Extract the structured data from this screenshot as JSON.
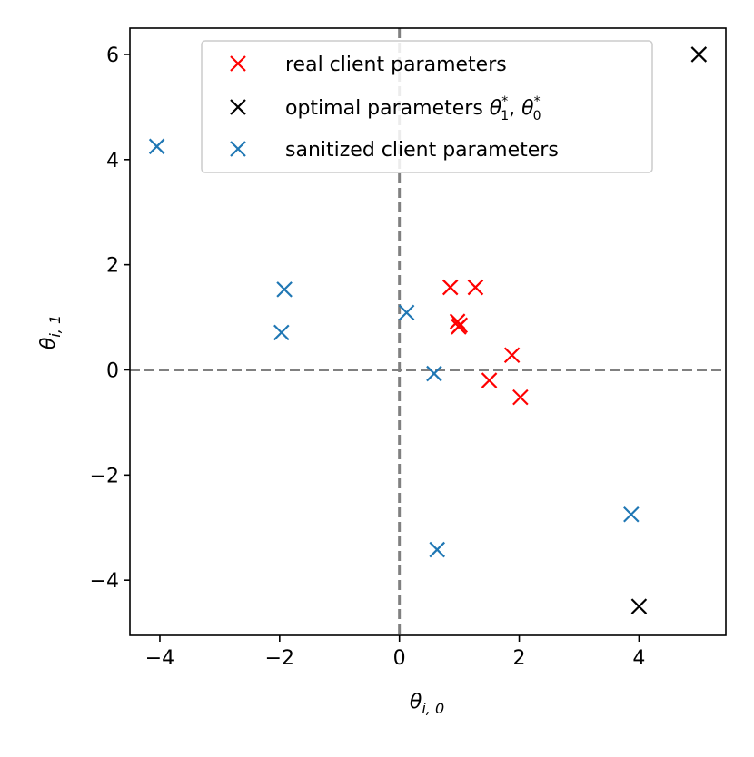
{
  "chart_data": {
    "type": "scatter",
    "title": "",
    "xlabel": "θ_{i,0}",
    "ylabel": "θ_{i,1}",
    "xlim": [
      -4.5,
      5.45
    ],
    "ylim": [
      -5.05,
      6.5
    ],
    "xticks": [
      -4,
      -2,
      0,
      2,
      4
    ],
    "yticks": [
      -4,
      -2,
      0,
      2,
      4,
      6
    ],
    "xtick_labels": [
      "−4",
      "−2",
      "0",
      "2",
      "4"
    ],
    "ytick_labels": [
      "−4",
      "−2",
      "0",
      "2",
      "4",
      "6"
    ],
    "grid": false,
    "reference_lines": {
      "x": 0,
      "y": 0,
      "style": "dashed",
      "color": "#808080"
    },
    "legend_position": "top-center",
    "series": [
      {
        "name": "real client parameters",
        "color": "#ff0000",
        "marker": "x",
        "points": [
          [
            0.85,
            1.57
          ],
          [
            1.27,
            1.57
          ],
          [
            0.97,
            0.92
          ],
          [
            1.01,
            0.85
          ],
          [
            0.99,
            0.82
          ],
          [
            1.88,
            0.28
          ],
          [
            1.5,
            -0.2
          ],
          [
            2.02,
            -0.52
          ]
        ]
      },
      {
        "name": "optimal parameters θ*_1, θ*_0",
        "legend_parts": {
          "prefix": "optimal parameters ",
          "a": "θ",
          "a_sub": "1",
          "a_sup": "*",
          "sep": ", ",
          "b": "θ",
          "b_sub": "0",
          "b_sup": "*"
        },
        "color": "#000000",
        "marker": "x",
        "points": [
          [
            5.0,
            6.0
          ],
          [
            4.0,
            -4.5
          ]
        ]
      },
      {
        "name": "sanitized client parameters",
        "color": "#1f77b4",
        "marker": "x",
        "points": [
          [
            -4.05,
            4.25
          ],
          [
            -1.92,
            1.53
          ],
          [
            -1.97,
            0.71
          ],
          [
            0.12,
            1.09
          ],
          [
            0.58,
            -0.07
          ],
          [
            3.87,
            -2.75
          ],
          [
            0.63,
            -3.42
          ]
        ]
      }
    ]
  }
}
